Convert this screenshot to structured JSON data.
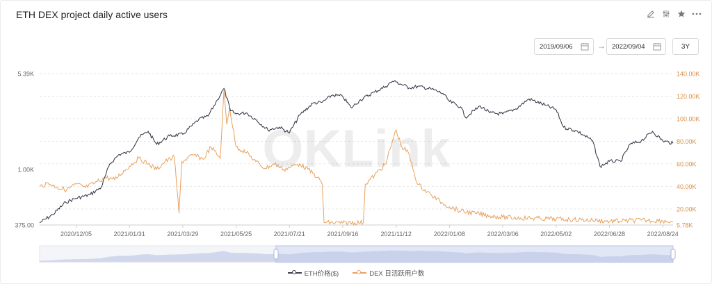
{
  "title": "ETH DEX project daily active users",
  "toolbar": {
    "icons": [
      "edit-icon",
      "settings-icon",
      "star-icon",
      "more-icon"
    ]
  },
  "date_range": {
    "start": "2019/09/06",
    "end": "2022/09/04",
    "arrow": "→",
    "range_button": "3Y"
  },
  "watermark": "OKLink",
  "colors": {
    "eth": "#3d3d4e",
    "dex": "#e8a05c",
    "grid": "#e6e6e6",
    "left_axis": "#666666",
    "right_axis": "#d68f45"
  },
  "legend": {
    "eth": "ETH价格($)",
    "dex": "DEX 日活跃用户数"
  },
  "chart_data": {
    "type": "line",
    "x_ticks": [
      "2020/12/05",
      "2021/01/31",
      "2021/03/29",
      "2021/05/25",
      "2021/07/21",
      "2021/09/16",
      "2021/11/12",
      "2022/01/08",
      "2022/03/06",
      "2022/05/02",
      "2022/06/28",
      "2022/08/24"
    ],
    "left_axis": {
      "scale": "log",
      "ticks": [
        "5.39K",
        "1.00K",
        "375.00"
      ],
      "tick_values": [
        5390,
        1000,
        375
      ],
      "range": [
        375,
        5390
      ]
    },
    "right_axis": {
      "scale": "linear",
      "ticks": [
        "140.00K",
        "120.00K",
        "100.00K",
        "80.00K",
        "60.00K",
        "40.00K",
        "20.00K",
        "5.78K"
      ],
      "tick_values": [
        140000,
        120000,
        100000,
        80000,
        60000,
        40000,
        20000,
        5780
      ],
      "range": [
        5780,
        140000
      ]
    },
    "x_range": [
      "2020/10/27",
      "2022/09/04"
    ],
    "series": [
      {
        "name": "ETH价格($)",
        "axis": "left",
        "points": [
          [
            "2020/10/27",
            390
          ],
          [
            "2020/11/10",
            450
          ],
          [
            "2020/11/24",
            560
          ],
          [
            "2020/12/05",
            600
          ],
          [
            "2020/12/20",
            640
          ],
          [
            "2021/01/01",
            730
          ],
          [
            "2021/01/10",
            1100
          ],
          [
            "2021/01/20",
            1300
          ],
          [
            "2021/01/31",
            1350
          ],
          [
            "2021/02/10",
            1750
          ],
          [
            "2021/02/20",
            1950
          ],
          [
            "2021/03/01",
            1550
          ],
          [
            "2021/03/15",
            1800
          ],
          [
            "2021/03/29",
            1850
          ],
          [
            "2021/04/15",
            2400
          ],
          [
            "2021/04/25",
            2550
          ],
          [
            "2021/05/05",
            3400
          ],
          [
            "2021/05/12",
            4150
          ],
          [
            "2021/05/19",
            2800
          ],
          [
            "2021/05/25",
            2650
          ],
          [
            "2021/06/05",
            2700
          ],
          [
            "2021/06/15",
            2400
          ],
          [
            "2021/06/28",
            2000
          ],
          [
            "2021/07/10",
            2100
          ],
          [
            "2021/07/21",
            1900
          ],
          [
            "2021/08/01",
            2600
          ],
          [
            "2021/08/15",
            3200
          ],
          [
            "2021/08/25",
            3250
          ],
          [
            "2021/09/05",
            3700
          ],
          [
            "2021/09/16",
            3600
          ],
          [
            "2021/09/25",
            2950
          ],
          [
            "2021/10/05",
            3400
          ],
          [
            "2021/10/20",
            3900
          ],
          [
            "2021/11/01",
            4300
          ],
          [
            "2021/11/08",
            4700
          ],
          [
            "2021/11/12",
            4650
          ],
          [
            "2021/11/26",
            4200
          ],
          [
            "2021/12/05",
            4300
          ],
          [
            "2021/12/20",
            4100
          ],
          [
            "2022/01/01",
            3800
          ],
          [
            "2022/01/08",
            3300
          ],
          [
            "2022/01/20",
            3000
          ],
          [
            "2022/01/25",
            2500
          ],
          [
            "2022/02/10",
            3050
          ],
          [
            "2022/02/20",
            2700
          ],
          [
            "2022/03/06",
            2650
          ],
          [
            "2022/03/20",
            2900
          ],
          [
            "2022/04/03",
            3450
          ],
          [
            "2022/04/20",
            3100
          ],
          [
            "2022/05/02",
            2850
          ],
          [
            "2022/05/10",
            2100
          ],
          [
            "2022/05/25",
            1950
          ],
          [
            "2022/06/10",
            1650
          ],
          [
            "2022/06/18",
            1050
          ],
          [
            "2022/06/28",
            1150
          ],
          [
            "2022/07/10",
            1150
          ],
          [
            "2022/07/20",
            1550
          ],
          [
            "2022/08/01",
            1650
          ],
          [
            "2022/08/13",
            1950
          ],
          [
            "2022/08/24",
            1650
          ],
          [
            "2022/09/04",
            1580
          ]
        ]
      },
      {
        "name": "DEX 日活跃用户数",
        "axis": "right",
        "points": [
          [
            "2020/10/27",
            40000
          ],
          [
            "2020/11/05",
            43000
          ],
          [
            "2020/11/15",
            39000
          ],
          [
            "2020/11/25",
            37000
          ],
          [
            "2020/12/05",
            42000
          ],
          [
            "2020/12/15",
            39000
          ],
          [
            "2020/12/25",
            43000
          ],
          [
            "2021/01/05",
            48000
          ],
          [
            "2021/01/15",
            46000
          ],
          [
            "2021/01/31",
            58000
          ],
          [
            "2021/02/10",
            65000
          ],
          [
            "2021/02/20",
            60000
          ],
          [
            "2021/03/01",
            55000
          ],
          [
            "2021/03/10",
            62000
          ],
          [
            "2021/03/20",
            66000
          ],
          [
            "2021/03/25",
            16000
          ],
          [
            "2021/03/28",
            62000
          ],
          [
            "2021/04/10",
            68000
          ],
          [
            "2021/04/20",
            64000
          ],
          [
            "2021/04/28",
            75000
          ],
          [
            "2021/05/08",
            65000
          ],
          [
            "2021/05/12",
            125000
          ],
          [
            "2021/05/15",
            95000
          ],
          [
            "2021/05/18",
            110000
          ],
          [
            "2021/05/25",
            75000
          ],
          [
            "2021/06/05",
            70000
          ],
          [
            "2021/06/15",
            62000
          ],
          [
            "2021/06/25",
            56000
          ],
          [
            "2021/07/05",
            60000
          ],
          [
            "2021/07/15",
            55000
          ],
          [
            "2021/07/21",
            57000
          ],
          [
            "2021/08/01",
            60000
          ],
          [
            "2021/08/10",
            55000
          ],
          [
            "2021/08/20",
            48000
          ],
          [
            "2021/08/25",
            42000
          ],
          [
            "2021/08/27",
            8000
          ],
          [
            "2021/09/16",
            7500
          ],
          [
            "2021/10/08",
            8000
          ],
          [
            "2021/10/10",
            42000
          ],
          [
            "2021/10/20",
            50000
          ],
          [
            "2021/11/01",
            60000
          ],
          [
            "2021/11/08",
            80000
          ],
          [
            "2021/11/12",
            90000
          ],
          [
            "2021/11/18",
            75000
          ],
          [
            "2021/11/25",
            70000
          ],
          [
            "2021/12/05",
            42000
          ],
          [
            "2021/12/20",
            32000
          ],
          [
            "2022/01/01",
            25000
          ],
          [
            "2022/01/08",
            22000
          ],
          [
            "2022/01/20",
            18000
          ],
          [
            "2022/02/05",
            16000
          ],
          [
            "2022/02/20",
            14000
          ],
          [
            "2022/03/06",
            12500
          ],
          [
            "2022/03/25",
            12000
          ],
          [
            "2022/04/15",
            11500
          ],
          [
            "2022/05/02",
            11000
          ],
          [
            "2022/05/20",
            10500
          ],
          [
            "2022/06/10",
            10000
          ],
          [
            "2022/06/28",
            9000
          ],
          [
            "2022/07/15",
            9500
          ],
          [
            "2022/08/01",
            10000
          ],
          [
            "2022/08/24",
            9500
          ],
          [
            "2022/09/04",
            8500
          ]
        ]
      }
    ],
    "grid": true,
    "legend_position": "bottom",
    "has_zoom_slider": true
  }
}
